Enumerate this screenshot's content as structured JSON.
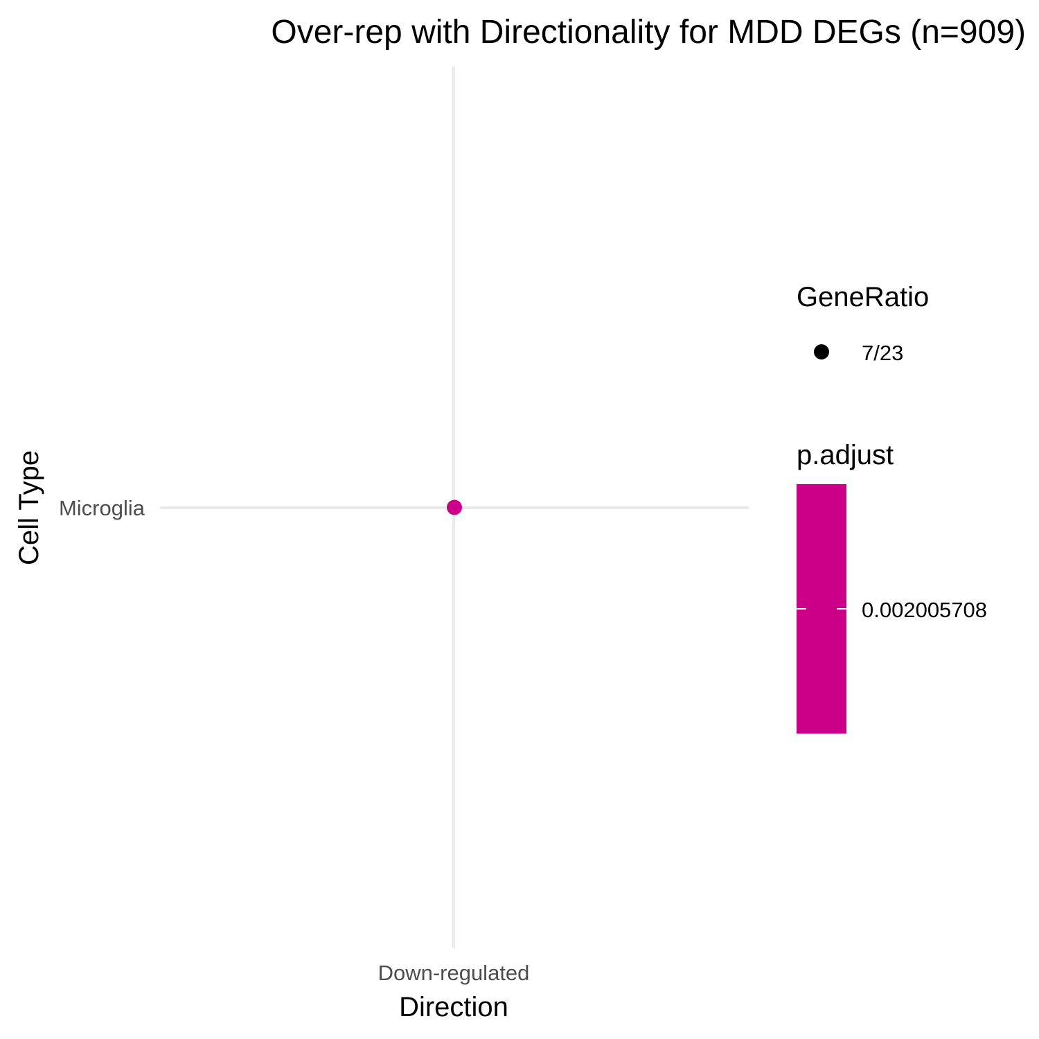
{
  "chart_data": {
    "type": "scatter",
    "title": "Over-rep with Directionality for MDD DEGs (n=909)",
    "xlabel": "Direction",
    "ylabel": "Cell Type",
    "x_categories": [
      "Down-regulated"
    ],
    "y_categories": [
      "Microglia"
    ],
    "points": [
      {
        "x": "Down-regulated",
        "y": "Microglia",
        "gene_ratio": "7/23",
        "p_adjust": 0.002005708,
        "color": "#cc0088"
      }
    ],
    "grid": true,
    "legend_position": "right",
    "legends": {
      "size": {
        "title": "GeneRatio",
        "entries": [
          "7/23"
        ]
      },
      "color": {
        "title": "p.adjust",
        "labels": [
          "0.002005708"
        ],
        "color": "#cc0088"
      }
    }
  }
}
